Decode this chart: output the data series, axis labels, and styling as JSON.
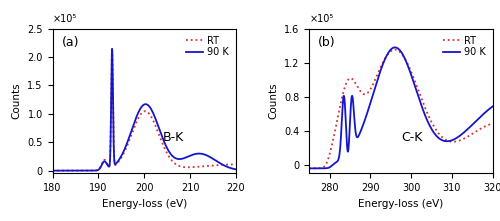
{
  "panel_a": {
    "label": "(a)",
    "xlabel": "Energy-loss (eV)",
    "ylabel": "Counts",
    "xlim": [
      180,
      220
    ],
    "ylim": [
      -5000.0,
      250000.0
    ],
    "yticks": [
      0,
      50000,
      100000,
      150000,
      200000,
      250000
    ],
    "ytick_labels": [
      "0",
      "0.5",
      "1.0",
      "1.5",
      "2.0",
      "2.5"
    ],
    "xticks": [
      180,
      190,
      200,
      210,
      220
    ],
    "annotation": "B-K",
    "scale_label": "×10⁵",
    "legend_rt": "RT",
    "legend_90k": "90 K"
  },
  "panel_b": {
    "label": "(b)",
    "xlabel": "Energy-loss (eV)",
    "ylabel": "Counts",
    "xlim": [
      275,
      320
    ],
    "ylim": [
      -10000.0,
      160000.0
    ],
    "yticks": [
      0,
      40000,
      80000,
      120000,
      160000
    ],
    "ytick_labels": [
      "0",
      "0.4",
      "0.8",
      "1.2",
      "1.6"
    ],
    "xticks": [
      280,
      290,
      300,
      310,
      320
    ],
    "annotation": "C-K",
    "scale_label": "×10⁵",
    "legend_rt": "RT",
    "legend_90k": "90 K"
  },
  "color_rt": "#d93030",
  "color_90k": "#1515cc",
  "lw": 1.3
}
